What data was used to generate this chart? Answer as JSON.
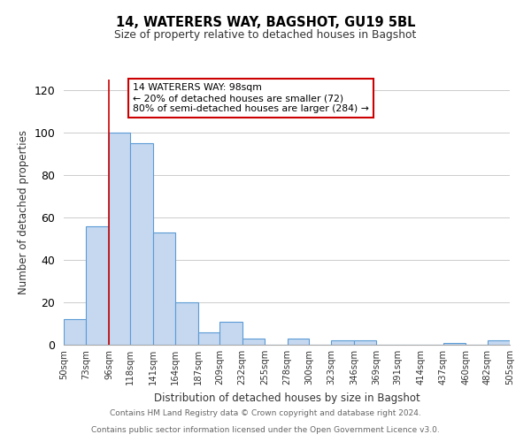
{
  "title": "14, WATERERS WAY, BAGSHOT, GU19 5BL",
  "subtitle": "Size of property relative to detached houses in Bagshot",
  "xlabel": "Distribution of detached houses by size in Bagshot",
  "ylabel": "Number of detached properties",
  "footer_line1": "Contains HM Land Registry data © Crown copyright and database right 2024.",
  "footer_line2": "Contains public sector information licensed under the Open Government Licence v3.0.",
  "bin_edges": [
    50,
    73,
    96,
    118,
    141,
    164,
    187,
    209,
    232,
    255,
    278,
    300,
    323,
    346,
    369,
    391,
    414,
    437,
    460,
    482,
    505
  ],
  "bin_labels": [
    "50sqm",
    "73sqm",
    "96sqm",
    "118sqm",
    "141sqm",
    "164sqm",
    "187sqm",
    "209sqm",
    "232sqm",
    "255sqm",
    "278sqm",
    "300sqm",
    "323sqm",
    "346sqm",
    "369sqm",
    "391sqm",
    "414sqm",
    "437sqm",
    "460sqm",
    "482sqm",
    "505sqm"
  ],
  "counts": [
    12,
    56,
    100,
    95,
    53,
    20,
    6,
    11,
    3,
    0,
    3,
    0,
    2,
    2,
    0,
    0,
    0,
    1,
    0,
    2
  ],
  "bar_color": "#c5d8f0",
  "bar_edge_color": "#5b9bd5",
  "vline_x": 96,
  "vline_color": "#cc0000",
  "annotation_line1": "14 WATERERS WAY: 98sqm",
  "annotation_line2": "← 20% of detached houses are smaller (72)",
  "annotation_line3": "80% of semi-detached houses are larger (284) →",
  "annotation_box_color": "#ffffff",
  "annotation_box_edge_color": "#cc0000",
  "ylim": [
    0,
    125
  ],
  "yticks": [
    0,
    20,
    40,
    60,
    80,
    100,
    120
  ]
}
